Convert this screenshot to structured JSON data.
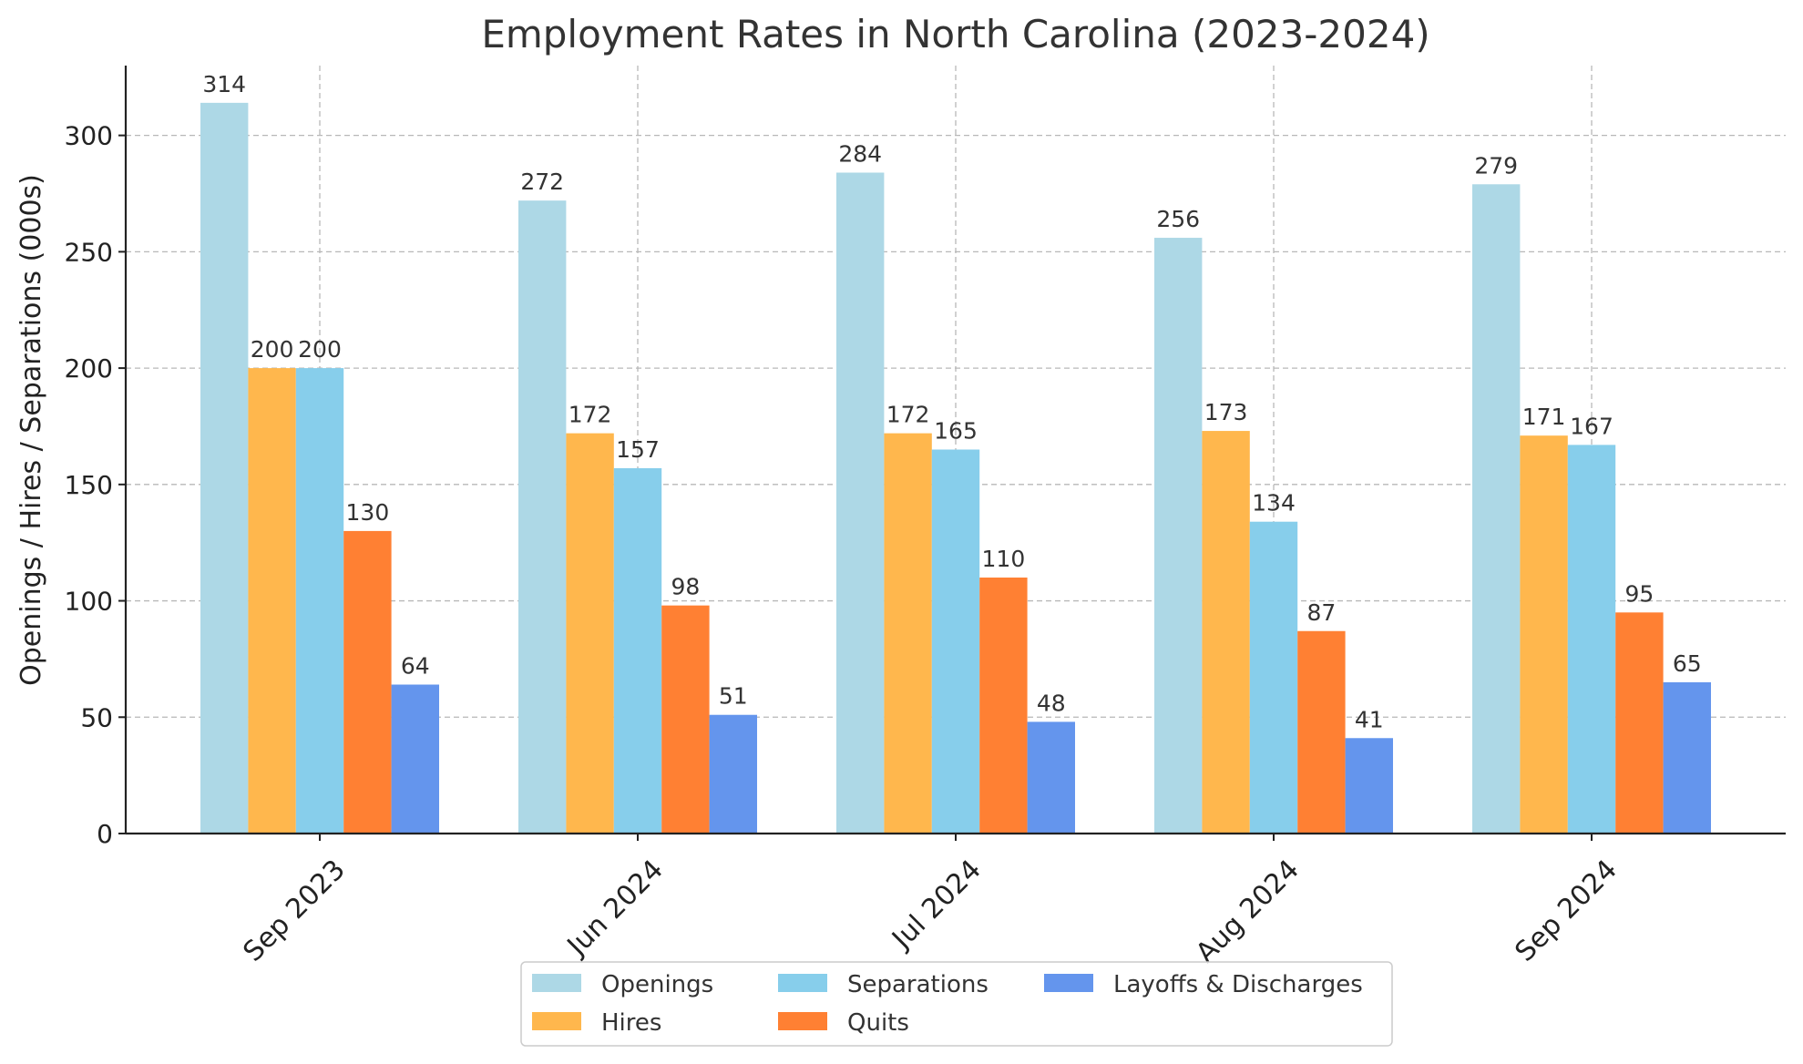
{
  "chart_data": {
    "type": "bar",
    "title": "Employment Rates in North Carolina (2023-2024)",
    "xlabel": "",
    "ylabel": "Openings / Hires / Separations (000s)",
    "categories": [
      "Sep 2023",
      "Jun 2024",
      "Jul 2024",
      "Aug 2024",
      "Sep 2024"
    ],
    "series": [
      {
        "name": "Openings",
        "color": "#add8e6",
        "values": [
          314,
          272,
          284,
          256,
          279
        ]
      },
      {
        "name": "Hires",
        "color": "#ffb74d",
        "values": [
          200,
          172,
          172,
          173,
          171
        ]
      },
      {
        "name": "Separations",
        "color": "#87ceeb",
        "values": [
          200,
          157,
          165,
          134,
          167
        ]
      },
      {
        "name": "Quits",
        "color": "#ff8033",
        "values": [
          130,
          98,
          110,
          87,
          95
        ]
      },
      {
        "name": "Layoffs & Discharges",
        "color": "#6495ed",
        "values": [
          64,
          51,
          48,
          41,
          65
        ]
      }
    ],
    "ylim": [
      0,
      330
    ],
    "yticks": [
      0,
      50,
      100,
      150,
      200,
      250,
      300
    ],
    "grid": true,
    "legend": {
      "placement": "bottom-center",
      "columns": 3
    }
  }
}
